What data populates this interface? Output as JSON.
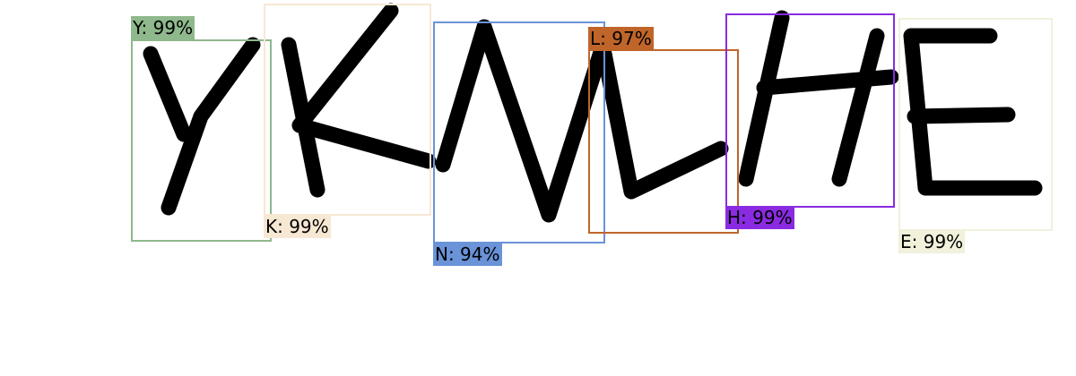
{
  "detections": [
    {
      "label": "Y: 99%",
      "color": "#8fb88c"
    },
    {
      "label": "K: 99%",
      "color": "#f7e8d4"
    },
    {
      "label": "N: 94%",
      "color": "#6a93d8"
    },
    {
      "label": "L: 97%",
      "color": "#c0652a"
    },
    {
      "label": "H: 99%",
      "color": "#8a2be2"
    },
    {
      "label": "E: 99%",
      "color": "#f1f1dc"
    }
  ],
  "letters_icon": "handwritten-letters-YKNLHE"
}
